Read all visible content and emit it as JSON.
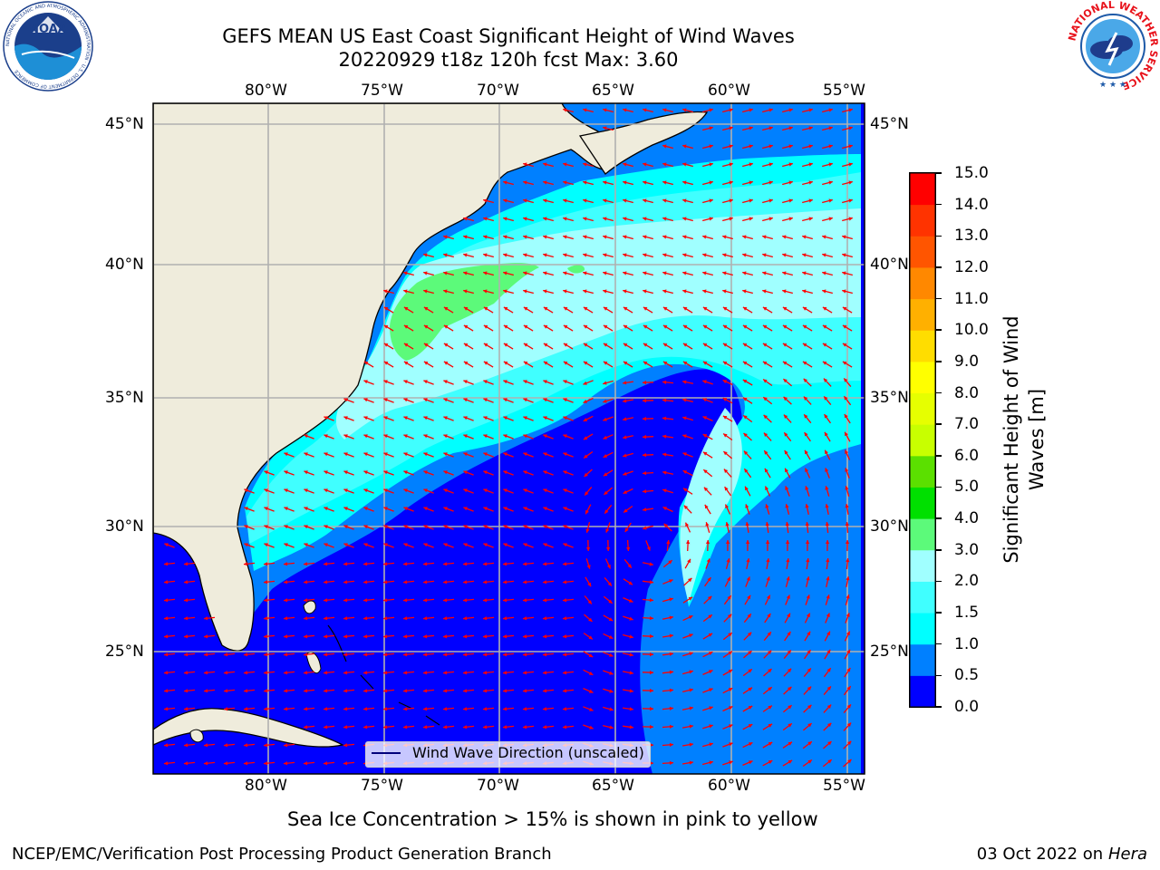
{
  "header": {
    "title_line1": "GEFS MEAN US East Coast Significant Height of Wind Waves",
    "title_line2": "20220929 t18z 120h fcst   Max: 3.60"
  },
  "logos": {
    "noaa": {
      "center_text": "NOAA",
      "ring_text": "NATIONAL OCEANIC AND ATMOSPHERIC ADMINISTRATION · U.S. DEPARTMENT OF COMMERCE"
    },
    "nws": {
      "ring_text": "NATIONAL WEATHER SERVICE"
    }
  },
  "map": {
    "lon_labels": [
      "80°W",
      "75°W",
      "70°W",
      "65°W",
      "60°W",
      "55°W"
    ],
    "lat_labels": [
      "45°N",
      "40°N",
      "35°N",
      "30°N",
      "25°N"
    ],
    "land_color": "#efecdc",
    "grid_color": "#b0b0b0",
    "arrow_color": "#ff0000",
    "legend_label": "Wind Wave Direction (unscaled)"
  },
  "colorbar": {
    "label_line1": "Significant Height of Wind",
    "label_line2": "Waves [m]",
    "ticks": [
      "0.0",
      "0.5",
      "1.0",
      "1.5",
      "2.0",
      "3.0",
      "4.0",
      "5.0",
      "6.0",
      "7.0",
      "8.0",
      "9.0",
      "10.0",
      "11.0",
      "12.0",
      "13.0",
      "14.0",
      "15.0"
    ],
    "colors": [
      "#0000ff",
      "#0080ff",
      "#00ffff",
      "#40ffff",
      "#a0ffff",
      "#5cfa7a",
      "#00e000",
      "#5be000",
      "#c8ff00",
      "#e6ff00",
      "#ffff00",
      "#ffdd00",
      "#ffb000",
      "#ff8800",
      "#ff5500",
      "#ff3300",
      "#ff0000"
    ]
  },
  "notes": {
    "sea_ice": "Sea Ice Concentration > 15% is shown in pink to yellow"
  },
  "footer": {
    "left": "NCEP/EMC/Verification Post Processing Product Generation Branch",
    "date": "03 Oct 2022 on",
    "host": "Hera"
  }
}
